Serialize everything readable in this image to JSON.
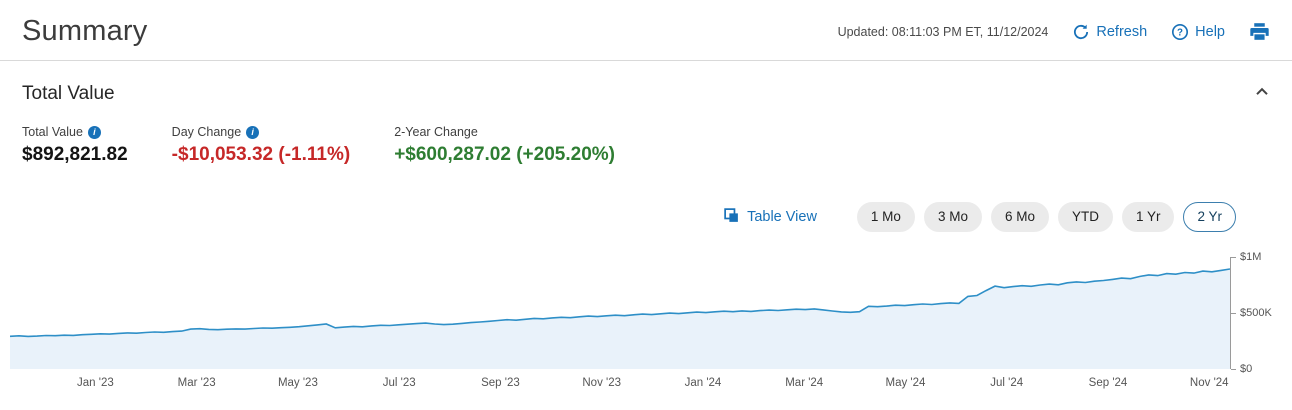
{
  "header": {
    "title": "Summary",
    "updated": "Updated: 08:11:03 PM ET, 11/12/2024",
    "refresh_label": "Refresh",
    "help_label": "Help"
  },
  "section": {
    "title": "Total Value"
  },
  "stats": {
    "total_value": {
      "label": "Total Value",
      "value": "$892,821.82"
    },
    "day_change": {
      "label": "Day Change",
      "value": "-$10,053.32 (-1.11%)"
    },
    "two_year_change": {
      "label": "2-Year Change",
      "value": "+$600,287.02 (+205.20%)"
    }
  },
  "controls": {
    "table_view_label": "Table View",
    "ranges": [
      {
        "label": "1 Mo",
        "selected": false
      },
      {
        "label": "3 Mo",
        "selected": false
      },
      {
        "label": "6 Mo",
        "selected": false
      },
      {
        "label": "YTD",
        "selected": false
      },
      {
        "label": "1 Yr",
        "selected": false
      },
      {
        "label": "2 Yr",
        "selected": true
      }
    ]
  },
  "colors": {
    "link_blue": "#1871b8",
    "negative_red": "#c62828",
    "positive_green": "#2e7d32",
    "chart_line": "#2e8fc7",
    "chart_fill": "#e9f2fa",
    "selected_pill_border": "#3d7fae"
  },
  "chart_data": {
    "type": "area",
    "title": "Total Value over 2 years",
    "unit": "USD thousands",
    "ylim": [
      0,
      1000000
    ],
    "y_ticks": [
      "$1M",
      "$500K",
      "$0"
    ],
    "x_labels": [
      "Jan '23",
      "Mar '23",
      "May '23",
      "Jul '23",
      "Sep '23",
      "Nov '23",
      "Jan '24",
      "Mar '24",
      "May '24",
      "Jul '24",
      "Sep '24",
      "Nov '24"
    ],
    "values_thousands": [
      292,
      296,
      291,
      294,
      299,
      297,
      302,
      300,
      306,
      310,
      314,
      312,
      318,
      322,
      320,
      326,
      330,
      328,
      334,
      338,
      356,
      360,
      354,
      351,
      355,
      358,
      356,
      362,
      366,
      364,
      369,
      372,
      378,
      386,
      394,
      402,
      368,
      374,
      380,
      377,
      385,
      390,
      388,
      395,
      400,
      405,
      410,
      402,
      396,
      400,
      407,
      414,
      420,
      426,
      433,
      440,
      436,
      444,
      452,
      448,
      456,
      462,
      458,
      466,
      472,
      468,
      475,
      480,
      476,
      484,
      490,
      486,
      493,
      499,
      495,
      502,
      508,
      504,
      511,
      516,
      512,
      519,
      514,
      521,
      526,
      522,
      529,
      534,
      530,
      537,
      528,
      518,
      510,
      506,
      512,
      560,
      556,
      562,
      570,
      566,
      574,
      580,
      576,
      584,
      590,
      586,
      648,
      656,
      700,
      740,
      726,
      736,
      744,
      738,
      750,
      758,
      752,
      770,
      778,
      772,
      784,
      790,
      800,
      812,
      806,
      826,
      840,
      834,
      852,
      846,
      862,
      856,
      874,
      868,
      880,
      892.8
    ]
  }
}
